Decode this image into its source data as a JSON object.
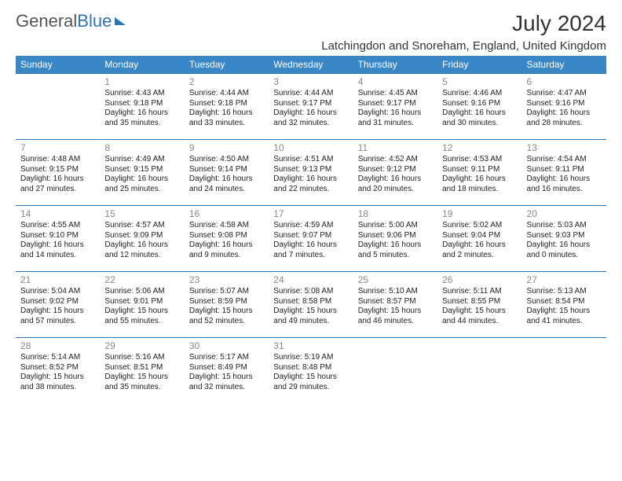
{
  "brand": {
    "part1": "General",
    "part2": "Blue"
  },
  "title": "July 2024",
  "location": "Latchingdon and Snoreham, England, United Kingdom",
  "colors": {
    "header_bg": "#3a87c7",
    "header_text": "#ffffff",
    "cell_border": "#2e74b5",
    "daynum": "#888888",
    "text": "#222222",
    "background": "#ffffff"
  },
  "day_names": [
    "Sunday",
    "Monday",
    "Tuesday",
    "Wednesday",
    "Thursday",
    "Friday",
    "Saturday"
  ],
  "weeks": [
    [
      null,
      {
        "n": "1",
        "sr": "Sunrise: 4:43 AM",
        "ss": "Sunset: 9:18 PM",
        "dl": "Daylight: 16 hours and 35 minutes."
      },
      {
        "n": "2",
        "sr": "Sunrise: 4:44 AM",
        "ss": "Sunset: 9:18 PM",
        "dl": "Daylight: 16 hours and 33 minutes."
      },
      {
        "n": "3",
        "sr": "Sunrise: 4:44 AM",
        "ss": "Sunset: 9:17 PM",
        "dl": "Daylight: 16 hours and 32 minutes."
      },
      {
        "n": "4",
        "sr": "Sunrise: 4:45 AM",
        "ss": "Sunset: 9:17 PM",
        "dl": "Daylight: 16 hours and 31 minutes."
      },
      {
        "n": "5",
        "sr": "Sunrise: 4:46 AM",
        "ss": "Sunset: 9:16 PM",
        "dl": "Daylight: 16 hours and 30 minutes."
      },
      {
        "n": "6",
        "sr": "Sunrise: 4:47 AM",
        "ss": "Sunset: 9:16 PM",
        "dl": "Daylight: 16 hours and 28 minutes."
      }
    ],
    [
      {
        "n": "7",
        "sr": "Sunrise: 4:48 AM",
        "ss": "Sunset: 9:15 PM",
        "dl": "Daylight: 16 hours and 27 minutes."
      },
      {
        "n": "8",
        "sr": "Sunrise: 4:49 AM",
        "ss": "Sunset: 9:15 PM",
        "dl": "Daylight: 16 hours and 25 minutes."
      },
      {
        "n": "9",
        "sr": "Sunrise: 4:50 AM",
        "ss": "Sunset: 9:14 PM",
        "dl": "Daylight: 16 hours and 24 minutes."
      },
      {
        "n": "10",
        "sr": "Sunrise: 4:51 AM",
        "ss": "Sunset: 9:13 PM",
        "dl": "Daylight: 16 hours and 22 minutes."
      },
      {
        "n": "11",
        "sr": "Sunrise: 4:52 AM",
        "ss": "Sunset: 9:12 PM",
        "dl": "Daylight: 16 hours and 20 minutes."
      },
      {
        "n": "12",
        "sr": "Sunrise: 4:53 AM",
        "ss": "Sunset: 9:11 PM",
        "dl": "Daylight: 16 hours and 18 minutes."
      },
      {
        "n": "13",
        "sr": "Sunrise: 4:54 AM",
        "ss": "Sunset: 9:11 PM",
        "dl": "Daylight: 16 hours and 16 minutes."
      }
    ],
    [
      {
        "n": "14",
        "sr": "Sunrise: 4:55 AM",
        "ss": "Sunset: 9:10 PM",
        "dl": "Daylight: 16 hours and 14 minutes."
      },
      {
        "n": "15",
        "sr": "Sunrise: 4:57 AM",
        "ss": "Sunset: 9:09 PM",
        "dl": "Daylight: 16 hours and 12 minutes."
      },
      {
        "n": "16",
        "sr": "Sunrise: 4:58 AM",
        "ss": "Sunset: 9:08 PM",
        "dl": "Daylight: 16 hours and 9 minutes."
      },
      {
        "n": "17",
        "sr": "Sunrise: 4:59 AM",
        "ss": "Sunset: 9:07 PM",
        "dl": "Daylight: 16 hours and 7 minutes."
      },
      {
        "n": "18",
        "sr": "Sunrise: 5:00 AM",
        "ss": "Sunset: 9:06 PM",
        "dl": "Daylight: 16 hours and 5 minutes."
      },
      {
        "n": "19",
        "sr": "Sunrise: 5:02 AM",
        "ss": "Sunset: 9:04 PM",
        "dl": "Daylight: 16 hours and 2 minutes."
      },
      {
        "n": "20",
        "sr": "Sunrise: 5:03 AM",
        "ss": "Sunset: 9:03 PM",
        "dl": "Daylight: 16 hours and 0 minutes."
      }
    ],
    [
      {
        "n": "21",
        "sr": "Sunrise: 5:04 AM",
        "ss": "Sunset: 9:02 PM",
        "dl": "Daylight: 15 hours and 57 minutes."
      },
      {
        "n": "22",
        "sr": "Sunrise: 5:06 AM",
        "ss": "Sunset: 9:01 PM",
        "dl": "Daylight: 15 hours and 55 minutes."
      },
      {
        "n": "23",
        "sr": "Sunrise: 5:07 AM",
        "ss": "Sunset: 8:59 PM",
        "dl": "Daylight: 15 hours and 52 minutes."
      },
      {
        "n": "24",
        "sr": "Sunrise: 5:08 AM",
        "ss": "Sunset: 8:58 PM",
        "dl": "Daylight: 15 hours and 49 minutes."
      },
      {
        "n": "25",
        "sr": "Sunrise: 5:10 AM",
        "ss": "Sunset: 8:57 PM",
        "dl": "Daylight: 15 hours and 46 minutes."
      },
      {
        "n": "26",
        "sr": "Sunrise: 5:11 AM",
        "ss": "Sunset: 8:55 PM",
        "dl": "Daylight: 15 hours and 44 minutes."
      },
      {
        "n": "27",
        "sr": "Sunrise: 5:13 AM",
        "ss": "Sunset: 8:54 PM",
        "dl": "Daylight: 15 hours and 41 minutes."
      }
    ],
    [
      {
        "n": "28",
        "sr": "Sunrise: 5:14 AM",
        "ss": "Sunset: 8:52 PM",
        "dl": "Daylight: 15 hours and 38 minutes."
      },
      {
        "n": "29",
        "sr": "Sunrise: 5:16 AM",
        "ss": "Sunset: 8:51 PM",
        "dl": "Daylight: 15 hours and 35 minutes."
      },
      {
        "n": "30",
        "sr": "Sunrise: 5:17 AM",
        "ss": "Sunset: 8:49 PM",
        "dl": "Daylight: 15 hours and 32 minutes."
      },
      {
        "n": "31",
        "sr": "Sunrise: 5:19 AM",
        "ss": "Sunset: 8:48 PM",
        "dl": "Daylight: 15 hours and 29 minutes."
      },
      null,
      null,
      null
    ]
  ]
}
